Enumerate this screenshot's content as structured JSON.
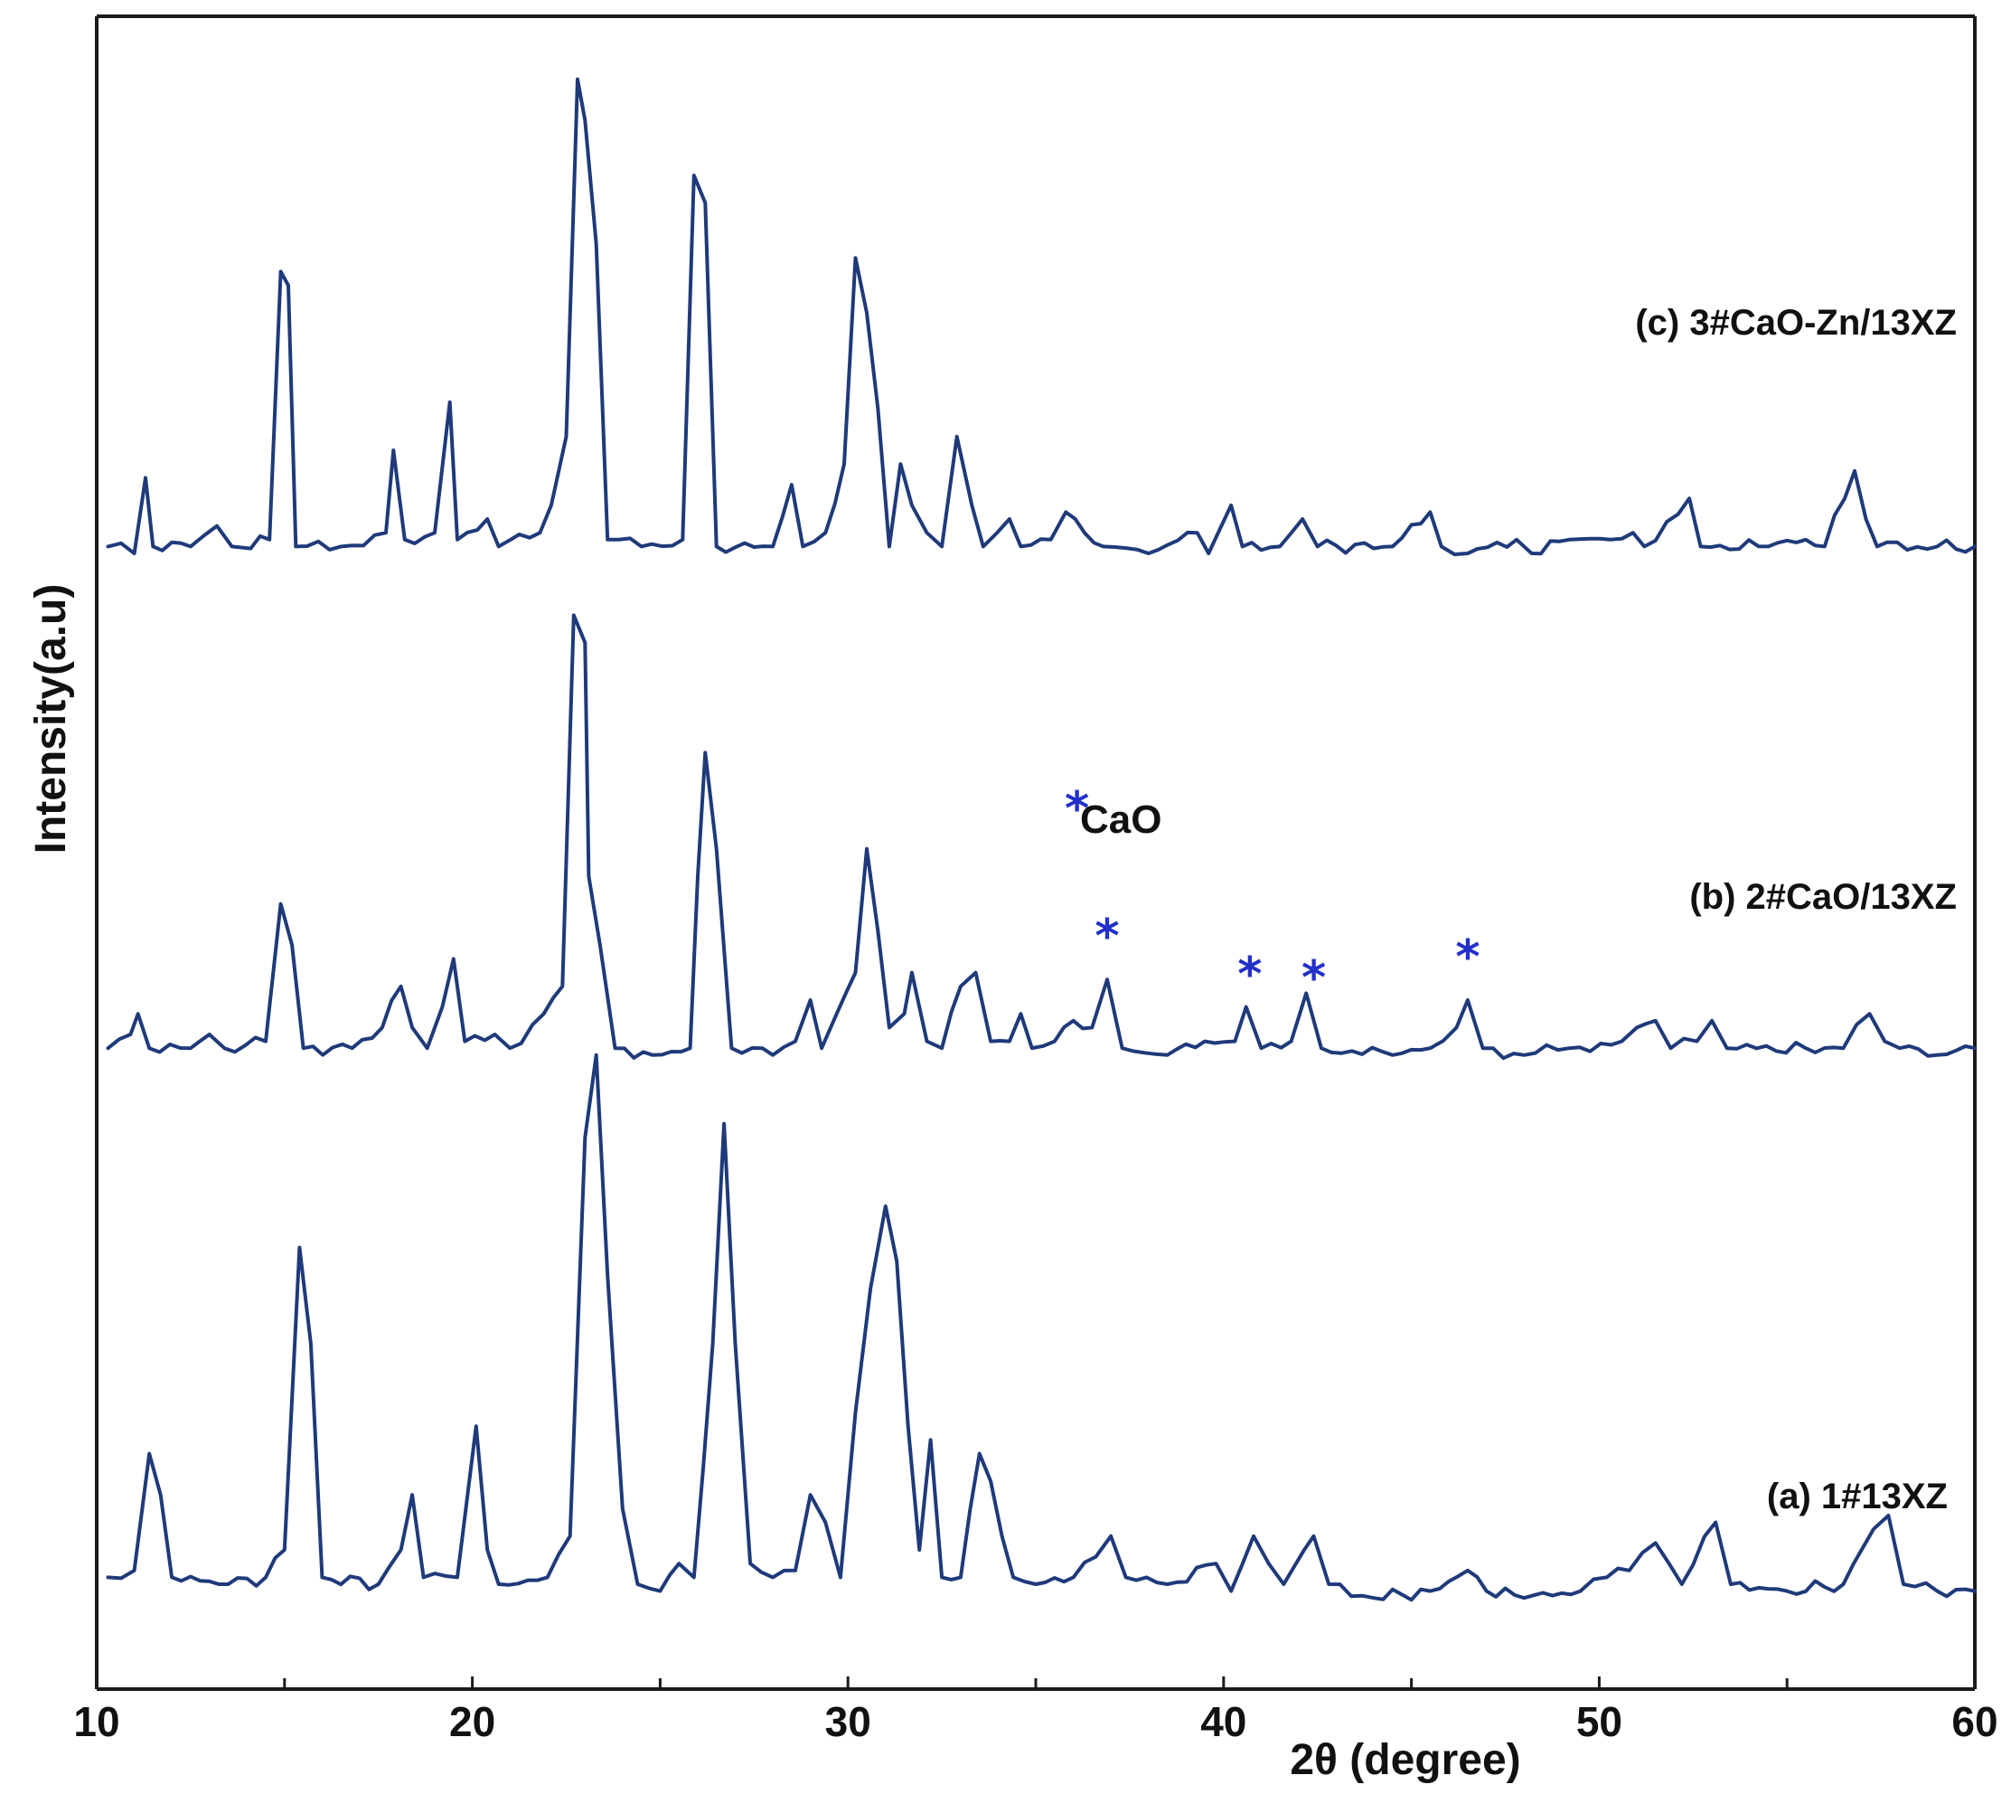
{
  "chart_data": {
    "type": "line",
    "xlabel": "2θ (degree)",
    "ylabel": "Intensity(a.u)",
    "xlim": [
      10,
      60
    ],
    "x_ticks": [
      10,
      20,
      30,
      40,
      50,
      60
    ],
    "minor_ticks": [
      15,
      25,
      35,
      45,
      55
    ],
    "grid": false,
    "line_color": "#1f3a7a",
    "marker_color": "#2230c8",
    "marker_symbol": "*",
    "legend": {
      "text": "CaO"
    },
    "series": [
      {
        "name": "(c) 3#CaO-Zn/13XZ",
        "baseline": 7.7,
        "points": [
          [
            10.3,
            7.8
          ],
          [
            11.0,
            7.75
          ],
          [
            11.3,
            8.3
          ],
          [
            11.5,
            7.8
          ],
          [
            12.5,
            7.8
          ],
          [
            13.2,
            7.95
          ],
          [
            13.6,
            7.8
          ],
          [
            14.6,
            7.85
          ],
          [
            14.9,
            9.8
          ],
          [
            15.1,
            9.7
          ],
          [
            15.3,
            7.8
          ],
          [
            16.5,
            7.8
          ],
          [
            17.7,
            7.9
          ],
          [
            17.9,
            8.5
          ],
          [
            18.2,
            7.85
          ],
          [
            19.0,
            7.9
          ],
          [
            19.4,
            8.85
          ],
          [
            19.6,
            7.85
          ],
          [
            20.4,
            8.0
          ],
          [
            20.7,
            7.8
          ],
          [
            21.8,
            7.9
          ],
          [
            22.1,
            8.1
          ],
          [
            22.5,
            8.6
          ],
          [
            22.8,
            11.2
          ],
          [
            23.0,
            10.9
          ],
          [
            23.3,
            10.0
          ],
          [
            23.6,
            7.85
          ],
          [
            24.5,
            7.8
          ],
          [
            25.6,
            7.85
          ],
          [
            25.9,
            10.5
          ],
          [
            26.2,
            10.3
          ],
          [
            26.5,
            7.8
          ],
          [
            28.0,
            7.8
          ],
          [
            28.5,
            8.25
          ],
          [
            28.8,
            7.8
          ],
          [
            29.4,
            7.9
          ],
          [
            29.9,
            8.4
          ],
          [
            30.2,
            9.9
          ],
          [
            30.5,
            9.5
          ],
          [
            30.8,
            8.8
          ],
          [
            31.1,
            7.8
          ],
          [
            31.4,
            8.4
          ],
          [
            31.7,
            8.1
          ],
          [
            32.1,
            7.9
          ],
          [
            32.5,
            7.8
          ],
          [
            32.9,
            8.6
          ],
          [
            33.3,
            8.1
          ],
          [
            33.6,
            7.8
          ],
          [
            34.3,
            8.0
          ],
          [
            34.6,
            7.8
          ],
          [
            35.4,
            7.85
          ],
          [
            35.8,
            8.05
          ],
          [
            36.3,
            7.9
          ],
          [
            36.8,
            7.8
          ],
          [
            38.0,
            7.75
          ],
          [
            39.3,
            7.9
          ],
          [
            39.6,
            7.75
          ],
          [
            40.2,
            8.1
          ],
          [
            40.5,
            7.8
          ],
          [
            41.5,
            7.8
          ],
          [
            42.1,
            8.0
          ],
          [
            42.5,
            7.8
          ],
          [
            44.5,
            7.8
          ],
          [
            45.5,
            8.05
          ],
          [
            45.8,
            7.8
          ],
          [
            46.5,
            7.75
          ],
          [
            47.8,
            7.85
          ],
          [
            48.2,
            7.75
          ],
          [
            49.2,
            7.85
          ],
          [
            50.3,
            7.85
          ],
          [
            50.9,
            7.9
          ],
          [
            51.2,
            7.8
          ],
          [
            52.4,
            8.15
          ],
          [
            52.7,
            7.8
          ],
          [
            54.5,
            7.8
          ],
          [
            55.5,
            7.85
          ],
          [
            56.0,
            7.8
          ],
          [
            56.8,
            8.35
          ],
          [
            57.1,
            8.0
          ],
          [
            57.4,
            7.8
          ],
          [
            59.0,
            7.8
          ],
          [
            60.0,
            7.8
          ]
        ]
      },
      {
        "name": "(b) 2#CaO/13XZ",
        "baseline": 4.1,
        "points": [
          [
            10.3,
            4.15
          ],
          [
            10.9,
            4.25
          ],
          [
            11.1,
            4.4
          ],
          [
            11.4,
            4.15
          ],
          [
            12.5,
            4.15
          ],
          [
            13.0,
            4.25
          ],
          [
            13.4,
            4.15
          ],
          [
            14.5,
            4.2
          ],
          [
            14.9,
            5.2
          ],
          [
            15.2,
            4.9
          ],
          [
            15.5,
            4.15
          ],
          [
            16.8,
            4.15
          ],
          [
            17.6,
            4.3
          ],
          [
            18.1,
            4.6
          ],
          [
            18.4,
            4.3
          ],
          [
            18.8,
            4.15
          ],
          [
            19.2,
            4.45
          ],
          [
            19.5,
            4.8
          ],
          [
            19.8,
            4.2
          ],
          [
            20.6,
            4.25
          ],
          [
            21.0,
            4.15
          ],
          [
            21.9,
            4.4
          ],
          [
            22.4,
            4.6
          ],
          [
            22.7,
            7.3
          ],
          [
            23.0,
            7.1
          ],
          [
            23.1,
            5.4
          ],
          [
            23.4,
            4.9
          ],
          [
            23.8,
            4.15
          ],
          [
            24.8,
            4.1
          ],
          [
            25.8,
            4.15
          ],
          [
            26.0,
            5.4
          ],
          [
            26.2,
            6.3
          ],
          [
            26.5,
            5.6
          ],
          [
            26.9,
            4.15
          ],
          [
            28.0,
            4.1
          ],
          [
            28.6,
            4.2
          ],
          [
            29.0,
            4.5
          ],
          [
            29.3,
            4.15
          ],
          [
            29.7,
            4.4
          ],
          [
            30.2,
            4.7
          ],
          [
            30.5,
            5.6
          ],
          [
            30.8,
            5.0
          ],
          [
            31.1,
            4.3
          ],
          [
            31.5,
            4.4
          ],
          [
            31.7,
            4.7
          ],
          [
            32.1,
            4.2
          ],
          [
            32.5,
            4.15
          ],
          [
            33.0,
            4.6
          ],
          [
            33.4,
            4.7
          ],
          [
            33.8,
            4.2
          ],
          [
            34.3,
            4.2
          ],
          [
            34.6,
            4.4
          ],
          [
            34.9,
            4.15
          ],
          [
            35.5,
            4.2
          ],
          [
            36.0,
            4.35
          ],
          [
            36.5,
            4.3
          ],
          [
            36.9,
            4.65
          ],
          [
            37.3,
            4.15
          ],
          [
            38.5,
            4.1
          ],
          [
            39.5,
            4.2
          ],
          [
            40.3,
            4.2
          ],
          [
            40.6,
            4.45
          ],
          [
            41.0,
            4.15
          ],
          [
            41.8,
            4.2
          ],
          [
            42.2,
            4.55
          ],
          [
            42.6,
            4.15
          ],
          [
            44.5,
            4.1
          ],
          [
            45.5,
            4.15
          ],
          [
            46.2,
            4.3
          ],
          [
            46.5,
            4.5
          ],
          [
            46.9,
            4.15
          ],
          [
            48.0,
            4.1
          ],
          [
            49.2,
            4.15
          ],
          [
            50.6,
            4.2
          ],
          [
            51.0,
            4.3
          ],
          [
            51.5,
            4.35
          ],
          [
            51.9,
            4.15
          ],
          [
            52.6,
            4.2
          ],
          [
            53.0,
            4.35
          ],
          [
            53.4,
            4.15
          ],
          [
            55.5,
            4.15
          ],
          [
            56.5,
            4.15
          ],
          [
            57.2,
            4.4
          ],
          [
            57.6,
            4.2
          ],
          [
            58.0,
            4.15
          ],
          [
            59.0,
            4.1
          ],
          [
            60.0,
            4.15
          ]
        ]
      },
      {
        "name": "(a) 1#13XZ",
        "baseline": 0.2,
        "points": [
          [
            10.3,
            0.3
          ],
          [
            11.0,
            0.35
          ],
          [
            11.4,
            1.2
          ],
          [
            11.7,
            0.9
          ],
          [
            12.0,
            0.3
          ],
          [
            13.5,
            0.25
          ],
          [
            14.5,
            0.3
          ],
          [
            15.0,
            0.5
          ],
          [
            15.4,
            2.7
          ],
          [
            15.7,
            2.0
          ],
          [
            16.0,
            0.3
          ],
          [
            17.5,
            0.25
          ],
          [
            18.1,
            0.5
          ],
          [
            18.4,
            0.9
          ],
          [
            18.7,
            0.3
          ],
          [
            19.6,
            0.3
          ],
          [
            20.1,
            1.4
          ],
          [
            20.4,
            0.5
          ],
          [
            20.7,
            0.25
          ],
          [
            22.0,
            0.3
          ],
          [
            22.6,
            0.6
          ],
          [
            23.0,
            3.5
          ],
          [
            23.3,
            4.1
          ],
          [
            23.6,
            2.5
          ],
          [
            24.0,
            0.8
          ],
          [
            24.4,
            0.25
          ],
          [
            25.0,
            0.2
          ],
          [
            25.5,
            0.4
          ],
          [
            25.9,
            0.3
          ],
          [
            26.4,
            2.0
          ],
          [
            26.7,
            3.6
          ],
          [
            27.0,
            2.0
          ],
          [
            27.4,
            0.4
          ],
          [
            28.0,
            0.3
          ],
          [
            28.6,
            0.35
          ],
          [
            29.0,
            0.9
          ],
          [
            29.4,
            0.7
          ],
          [
            29.8,
            0.3
          ],
          [
            30.2,
            1.5
          ],
          [
            30.6,
            2.4
          ],
          [
            31.0,
            3.0
          ],
          [
            31.3,
            2.6
          ],
          [
            31.6,
            1.4
          ],
          [
            31.9,
            0.5
          ],
          [
            32.2,
            1.3
          ],
          [
            32.5,
            0.3
          ],
          [
            33.0,
            0.3
          ],
          [
            33.5,
            1.2
          ],
          [
            33.8,
            1.0
          ],
          [
            34.1,
            0.6
          ],
          [
            34.4,
            0.3
          ],
          [
            35.0,
            0.25
          ],
          [
            36.0,
            0.3
          ],
          [
            36.6,
            0.45
          ],
          [
            37.0,
            0.6
          ],
          [
            37.4,
            0.3
          ],
          [
            38.5,
            0.25
          ],
          [
            39.8,
            0.4
          ],
          [
            40.2,
            0.2
          ],
          [
            40.8,
            0.6
          ],
          [
            41.2,
            0.4
          ],
          [
            41.6,
            0.25
          ],
          [
            42.4,
            0.6
          ],
          [
            42.8,
            0.25
          ],
          [
            44.0,
            0.15
          ],
          [
            45.5,
            0.2
          ],
          [
            46.5,
            0.35
          ],
          [
            47.0,
            0.2
          ],
          [
            48.0,
            0.15
          ],
          [
            49.5,
            0.2
          ],
          [
            50.2,
            0.3
          ],
          [
            50.8,
            0.35
          ],
          [
            51.5,
            0.55
          ],
          [
            52.2,
            0.25
          ],
          [
            53.1,
            0.7
          ],
          [
            53.5,
            0.25
          ],
          [
            55.0,
            0.2
          ],
          [
            56.5,
            0.25
          ],
          [
            57.3,
            0.65
          ],
          [
            57.7,
            0.75
          ],
          [
            58.1,
            0.25
          ],
          [
            59.0,
            0.2
          ],
          [
            60.0,
            0.2
          ]
        ]
      }
    ],
    "cao_peaks": [
      36.9,
      40.7,
      42.4,
      46.5
    ]
  }
}
